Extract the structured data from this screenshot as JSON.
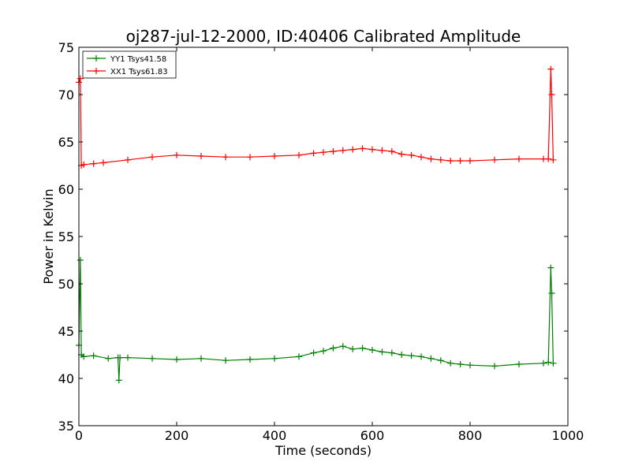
{
  "chart_data": {
    "type": "line",
    "title": "oj287-jul-12-2000, ID:40406 Calibrated Amplitude",
    "xlabel": "Time (seconds)",
    "ylabel": "Power in Kelvin",
    "xlim": [
      0,
      1000
    ],
    "ylim": [
      35,
      75
    ],
    "xticks": [
      "0",
      "200",
      "400",
      "600",
      "800",
      "1000"
    ],
    "yticks": [
      "35",
      "40",
      "45",
      "50",
      "55",
      "60",
      "65",
      "70",
      "75"
    ],
    "grid": false,
    "legend": {
      "placement": "top-left"
    },
    "marker": "+",
    "series": [
      {
        "name": "YY1 Tsys41.58",
        "color": "#008000",
        "x": [
          0,
          3,
          5,
          10,
          30,
          60,
          80,
          82,
          84,
          100,
          150,
          200,
          250,
          300,
          350,
          400,
          450,
          480,
          500,
          520,
          540,
          560,
          580,
          600,
          620,
          640,
          660,
          680,
          700,
          720,
          740,
          760,
          780,
          800,
          850,
          900,
          950,
          960,
          965,
          967,
          970
        ],
        "y": [
          43.5,
          52.5,
          42.5,
          42.3,
          42.4,
          42.1,
          42.2,
          39.8,
          42.2,
          42.2,
          42.1,
          42.0,
          42.1,
          41.9,
          42.0,
          42.1,
          42.3,
          42.7,
          42.9,
          43.2,
          43.4,
          43.1,
          43.2,
          43.0,
          42.8,
          42.7,
          42.5,
          42.4,
          42.3,
          42.1,
          41.9,
          41.6,
          41.5,
          41.4,
          41.3,
          41.5,
          41.6,
          41.7,
          51.7,
          49.0,
          41.6
        ]
      },
      {
        "name": "XX1 Tsys61.83",
        "color": "#ff0000",
        "x": [
          0,
          3,
          5,
          10,
          30,
          50,
          100,
          150,
          200,
          250,
          300,
          350,
          400,
          450,
          480,
          500,
          520,
          540,
          560,
          580,
          600,
          620,
          640,
          660,
          680,
          700,
          720,
          740,
          760,
          780,
          800,
          850,
          900,
          950,
          960,
          965,
          967,
          970
        ],
        "y": [
          71.3,
          71.7,
          62.5,
          62.6,
          62.7,
          62.8,
          63.1,
          63.4,
          63.6,
          63.5,
          63.4,
          63.4,
          63.5,
          63.6,
          63.8,
          63.9,
          64.0,
          64.1,
          64.2,
          64.3,
          64.2,
          64.1,
          64.0,
          63.7,
          63.6,
          63.4,
          63.2,
          63.1,
          63.0,
          63.0,
          63.0,
          63.1,
          63.2,
          63.2,
          63.2,
          72.7,
          70.0,
          63.1
        ]
      }
    ]
  }
}
